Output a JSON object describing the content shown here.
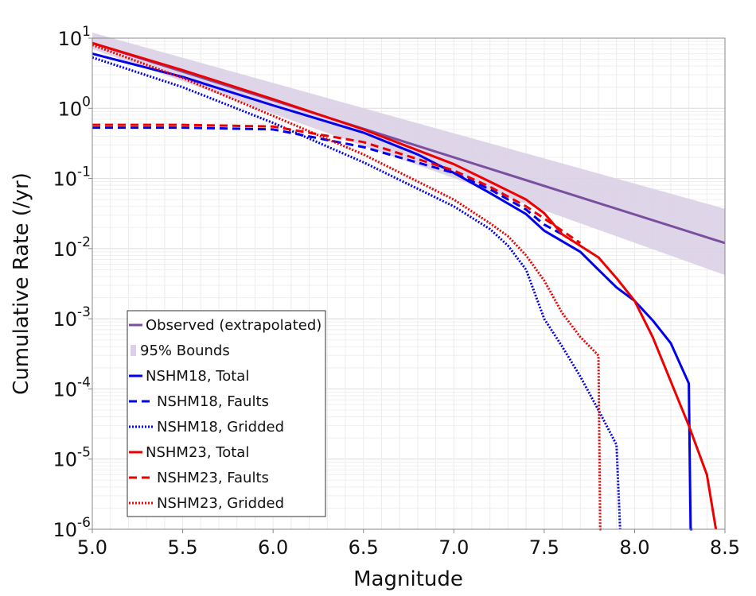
{
  "chart_data": {
    "type": "line",
    "xlabel": "Magnitude",
    "ylabel": "Cumulative Rate (/yr)",
    "xlim": [
      5.0,
      8.5
    ],
    "ylim": [
      1e-06,
      10
    ],
    "yscale": "log",
    "grid": true,
    "legend_position": "bottom-left",
    "x_ticks": [
      "5.0",
      "5.5",
      "6.0",
      "6.5",
      "7.0",
      "7.5",
      "8.0",
      "8.5"
    ],
    "y_ticks": [
      {
        "value": 1e-06,
        "base": "10",
        "exp": "-6"
      },
      {
        "value": 1e-05,
        "base": "10",
        "exp": "-5"
      },
      {
        "value": 0.0001,
        "base": "10",
        "exp": "-4"
      },
      {
        "value": 0.001,
        "base": "10",
        "exp": "-3"
      },
      {
        "value": 0.01,
        "base": "10",
        "exp": "-2"
      },
      {
        "value": 0.1,
        "base": "10",
        "exp": "-1"
      },
      {
        "value": 1,
        "base": "10",
        "exp": "0"
      },
      {
        "value": 10,
        "base": "10",
        "exp": "1"
      }
    ],
    "band": {
      "name": "95% Bounds",
      "color": "#dcd0e6",
      "x": [
        5.0,
        8.5
      ],
      "lower": [
        7.0,
        0.0042
      ],
      "upper": [
        12.0,
        0.037
      ]
    },
    "series": [
      {
        "name": "Observed (extrapolated)",
        "color": "#7b4fa0",
        "dash": "solid",
        "x": [
          5.0,
          8.5
        ],
        "y": [
          8.5,
          0.012
        ]
      },
      {
        "name": "NSHM18, Total",
        "color": "#0000ee",
        "dash": "solid",
        "x": [
          5.0,
          5.5,
          6.0,
          6.5,
          6.8,
          7.0,
          7.2,
          7.4,
          7.5,
          7.7,
          7.8,
          7.9,
          8.0,
          8.1,
          8.2,
          8.3,
          8.31,
          8.32
        ],
        "y": [
          6.0,
          2.8,
          1.1,
          0.45,
          0.22,
          0.12,
          0.062,
          0.031,
          0.018,
          0.009,
          0.005,
          0.0028,
          0.0018,
          0.00095,
          0.00045,
          0.00012,
          1e-06,
          1e-06
        ]
      },
      {
        "name": "NSHM18, Faults",
        "color": "#0000ee",
        "dash": "dashed",
        "x": [
          5.0,
          5.5,
          6.0,
          6.5,
          7.0,
          7.2,
          7.4,
          7.5,
          7.6
        ],
        "y": [
          0.53,
          0.53,
          0.5,
          0.28,
          0.12,
          0.07,
          0.036,
          0.022,
          0.016
        ]
      },
      {
        "name": "NSHM18, Gridded",
        "color": "#0000ee",
        "dash": "dotted",
        "x": [
          5.0,
          5.5,
          6.0,
          6.5,
          7.0,
          7.2,
          7.3,
          7.4,
          7.5,
          7.6,
          7.7,
          7.8,
          7.9,
          7.92
        ],
        "y": [
          5.3,
          2.0,
          0.62,
          0.17,
          0.04,
          0.019,
          0.011,
          0.005,
          0.001,
          0.0004,
          0.00015,
          5e-05,
          1.6e-05,
          1e-06
        ]
      },
      {
        "name": "NSHM23, Total",
        "color": "#ee0000",
        "dash": "solid",
        "x": [
          5.0,
          5.5,
          6.0,
          6.5,
          7.0,
          7.2,
          7.4,
          7.5,
          7.6,
          7.8,
          7.9,
          8.0,
          8.1,
          8.3,
          8.4,
          8.45
        ],
        "y": [
          8.5,
          3.5,
          1.35,
          0.5,
          0.16,
          0.09,
          0.05,
          0.032,
          0.016,
          0.0075,
          0.0038,
          0.0018,
          0.00055,
          3e-05,
          6e-06,
          1e-06
        ]
      },
      {
        "name": "NSHM23, Faults",
        "color": "#ee0000",
        "dash": "dashed",
        "x": [
          5.0,
          5.5,
          6.0,
          6.5,
          7.0,
          7.2,
          7.4,
          7.6,
          7.7
        ],
        "y": [
          0.58,
          0.58,
          0.55,
          0.33,
          0.13,
          0.076,
          0.04,
          0.018,
          0.012
        ]
      },
      {
        "name": "NSHM23, Gridded",
        "color": "#ee0000",
        "dash": "dotted",
        "x": [
          5.0,
          5.5,
          6.0,
          6.5,
          7.0,
          7.2,
          7.3,
          7.4,
          7.5,
          7.6,
          7.7,
          7.8,
          7.81,
          7.82
        ],
        "y": [
          8.0,
          2.7,
          0.78,
          0.22,
          0.05,
          0.023,
          0.015,
          0.008,
          0.0035,
          0.0012,
          0.00055,
          0.0003,
          1e-06,
          1e-06
        ]
      }
    ]
  }
}
